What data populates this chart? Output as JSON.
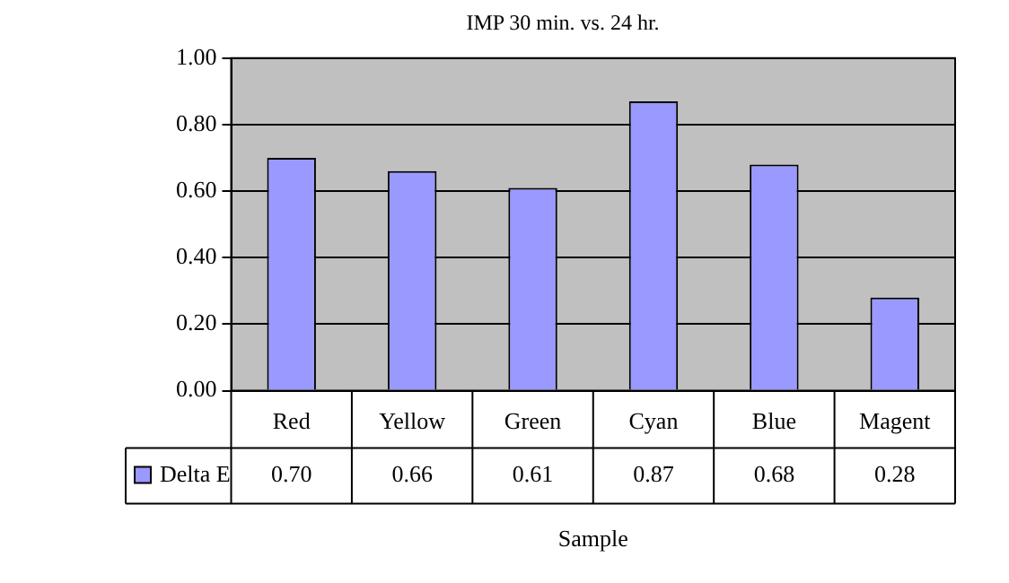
{
  "chart_data": {
    "type": "bar",
    "title": "IMP 30 min. vs. 24 hr.",
    "xlabel": "Sample",
    "categories": [
      "Red",
      "Yellow",
      "Green",
      "Cyan",
      "Blue",
      "Magent"
    ],
    "series": [
      {
        "name": "Delta E",
        "color": "#9999ff",
        "values": [
          0.7,
          0.66,
          0.61,
          0.87,
          0.68,
          0.28
        ],
        "value_labels": [
          "0.70",
          "0.66",
          "0.61",
          "0.87",
          "0.68",
          "0.28"
        ]
      }
    ],
    "ylim": [
      0,
      1
    ],
    "yticks": [
      {
        "value": 0,
        "label": "0.00"
      },
      {
        "value": 0.2,
        "label": "0.20"
      },
      {
        "value": 0.4,
        "label": "0.40"
      },
      {
        "value": 0.6,
        "label": "0.60"
      },
      {
        "value": 0.8,
        "label": "0.80"
      },
      {
        "value": 1,
        "label": "1.00"
      }
    ],
    "grid": "y",
    "legend": "bottom"
  }
}
